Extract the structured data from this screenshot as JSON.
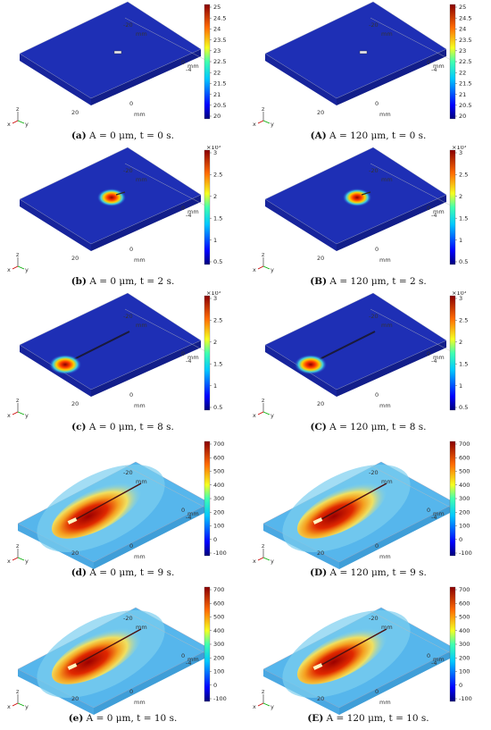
{
  "panels": [
    {
      "id": "a",
      "caption_tag": "(a)",
      "caption_text": " A = 0 μm, t = 0 s.",
      "state": "t0",
      "multiplier": "",
      "ticks": [
        "25",
        "24.5",
        "24",
        "23.5",
        "23",
        "22.5",
        "22",
        "21.5",
        "21",
        "20.5",
        "20"
      ]
    },
    {
      "id": "A",
      "caption_tag": "(A)",
      "caption_text": " A = 120 μm, t = 0 s.",
      "state": "t0",
      "multiplier": "",
      "ticks": [
        "25",
        "24.5",
        "24",
        "23.5",
        "23",
        "22.5",
        "22",
        "21.5",
        "21",
        "20.5",
        "20"
      ]
    },
    {
      "id": "b",
      "caption_tag": "(b)",
      "caption_text": " A = 0 μm, t = 2 s.",
      "state": "t2",
      "multiplier": "×10³",
      "ticks": [
        "3",
        "2.5",
        "2",
        "1.5",
        "1",
        "0.5"
      ]
    },
    {
      "id": "B",
      "caption_tag": "(B)",
      "caption_text": " A = 120 μm, t = 2 s.",
      "state": "t2",
      "multiplier": "×10³",
      "ticks": [
        "3",
        "2.5",
        "2",
        "1.5",
        "1",
        "0.5"
      ]
    },
    {
      "id": "c",
      "caption_tag": "(c)",
      "caption_text": " A = 0 μm, t = 8 s.",
      "state": "t8",
      "multiplier": "×10³",
      "ticks": [
        "3",
        "2.5",
        "2",
        "1.5",
        "1",
        "0.5"
      ]
    },
    {
      "id": "C",
      "caption_tag": "(C)",
      "caption_text": " A = 120 μm, t = 8 s.",
      "state": "t8",
      "multiplier": "×10³",
      "ticks": [
        "3",
        "2.5",
        "2",
        "1.5",
        "1",
        "0.5"
      ]
    },
    {
      "id": "d",
      "caption_tag": "(d)",
      "caption_text": " A = 0 μm, t = 9 s.",
      "state": "t9",
      "multiplier": "",
      "ticks": [
        "700",
        "600",
        "500",
        "400",
        "300",
        "200",
        "100",
        "0",
        "-100"
      ]
    },
    {
      "id": "D",
      "caption_tag": "(D)",
      "caption_text": " A = 120 μm, t = 9 s.",
      "state": "t9",
      "multiplier": "",
      "ticks": [
        "700",
        "600",
        "500",
        "400",
        "300",
        "200",
        "100",
        "0",
        "-100"
      ]
    },
    {
      "id": "e",
      "caption_tag": "(e)",
      "caption_text": " A = 0 μm, t = 10 s.",
      "state": "t10",
      "multiplier": "",
      "ticks": [
        "700",
        "600",
        "500",
        "400",
        "300",
        "200",
        "100",
        "0",
        "-100"
      ]
    },
    {
      "id": "E",
      "caption_tag": "(E)",
      "caption_text": " A = 120 μm, t = 10 s.",
      "state": "t10",
      "multiplier": "",
      "ticks": [
        "700",
        "600",
        "500",
        "400",
        "300",
        "200",
        "100",
        "0",
        "-100"
      ]
    }
  ],
  "axis_labels": {
    "top_tick": "-20",
    "top_unit": "mm",
    "right_tick_a": "0",
    "right_tick_b": "-4",
    "right_unit": "mm",
    "front_tick_a": "0",
    "front_tick_b": "20",
    "front_unit": "mm",
    "left_tick": "20",
    "axis_x": "x",
    "axis_y": "y",
    "axis_z": "z"
  },
  "colors": {
    "cold": "#1d2fb8",
    "deep": "#0a0f8a",
    "cyan": "#3fb4e8",
    "yellow": "#f2e03a",
    "orange": "#f07a1a",
    "red": "#b00000"
  }
}
